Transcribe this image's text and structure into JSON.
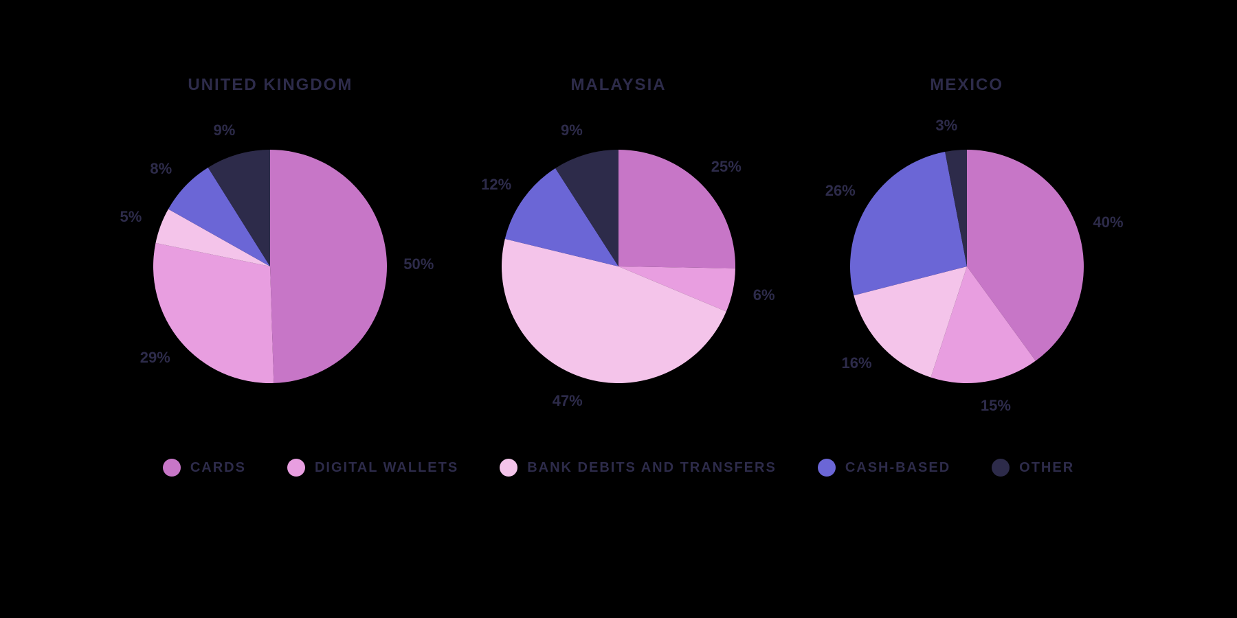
{
  "background_color": "#000000",
  "title_color": "#2d2b4a",
  "label_color": "#2d2b4a",
  "title_fontsize": 24,
  "label_fontsize": 22,
  "legend_fontsize": 20,
  "pie_radius": 170,
  "categories": [
    {
      "key": "cards",
      "label": "CARDS",
      "color": "#c776c7"
    },
    {
      "key": "wallets",
      "label": "DIGITAL WALLETS",
      "color": "#e89ee0"
    },
    {
      "key": "bank",
      "label": "BANK DEBITS AND TRANSFERS",
      "color": "#f4c4ea"
    },
    {
      "key": "cash",
      "label": "CASH-BASED",
      "color": "#6b66d6"
    },
    {
      "key": "other",
      "label": "OTHER",
      "color": "#2d2b4a"
    }
  ],
  "charts": [
    {
      "title": "UNITED KINGDOM",
      "slices": [
        {
          "key": "cards",
          "value": 50,
          "label": "50%"
        },
        {
          "key": "wallets",
          "value": 29,
          "label": "29%"
        },
        {
          "key": "bank",
          "value": 5,
          "label": "5%"
        },
        {
          "key": "cash",
          "value": 8,
          "label": "8%"
        },
        {
          "key": "other",
          "value": 9,
          "label": "9%"
        }
      ]
    },
    {
      "title": "MALAYSIA",
      "slices": [
        {
          "key": "cards",
          "value": 25,
          "label": "25%"
        },
        {
          "key": "wallets",
          "value": 6,
          "label": "6%"
        },
        {
          "key": "bank",
          "value": 47,
          "label": "47%"
        },
        {
          "key": "cash",
          "value": 12,
          "label": "12%"
        },
        {
          "key": "other",
          "value": 9,
          "label": "9%"
        }
      ]
    },
    {
      "title": "MEXICO",
      "slices": [
        {
          "key": "cards",
          "value": 40,
          "label": "40%"
        },
        {
          "key": "wallets",
          "value": 15,
          "label": "15%"
        },
        {
          "key": "bank",
          "value": 16,
          "label": "16%"
        },
        {
          "key": "cash",
          "value": 26,
          "label": "26%"
        },
        {
          "key": "other",
          "value": 3,
          "label": "3%"
        }
      ]
    }
  ]
}
